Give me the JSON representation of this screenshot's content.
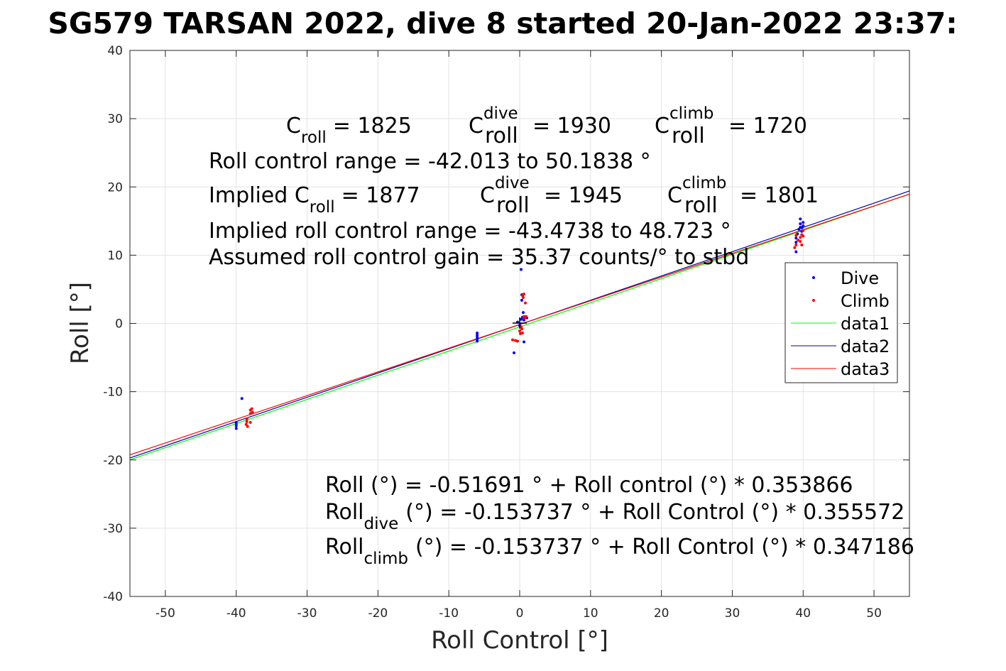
{
  "chart_data": {
    "type": "scatter",
    "title": "SG579 TARSAN 2022, dive 8 started 20-Jan-2022 23:37:",
    "xlabel": "Roll Control [°]",
    "ylabel": "Roll [°]",
    "xlim": [
      -55,
      55
    ],
    "ylim": [
      -40,
      40
    ],
    "xticks": [
      -50,
      -40,
      -30,
      -20,
      -10,
      0,
      10,
      20,
      30,
      40,
      50
    ],
    "yticks": [
      -40,
      -30,
      -20,
      -10,
      0,
      10,
      20,
      30,
      40
    ],
    "xtick_labels": [
      "-50",
      "-40",
      "-30",
      "-20",
      "-10",
      "0",
      "10",
      "20",
      "30",
      "40",
      "50"
    ],
    "ytick_labels": [
      "-40",
      "-30",
      "-20",
      "-10",
      "0",
      "10",
      "20",
      "30",
      "40"
    ],
    "grid": true,
    "legend_position": "right",
    "legend": [
      "Dive",
      "Climb",
      "data1",
      "data2",
      "data3"
    ],
    "colors": {
      "dive": "#0000ff",
      "climb": "#ff0000",
      "data1": "#00ff00",
      "data2": "#0000aa",
      "data3": "#ff0000"
    },
    "series": [
      {
        "name": "Dive",
        "kind": "points",
        "points": [
          [
            -40,
            -14.5
          ],
          [
            -40,
            -15.0
          ],
          [
            -40,
            -15.4
          ],
          [
            -40,
            -14.8
          ],
          [
            -39.2,
            -11.0
          ],
          [
            -6,
            -1.4
          ],
          [
            -6,
            -1.7
          ],
          [
            -6,
            -2.0
          ],
          [
            -6,
            -2.3
          ],
          [
            -6,
            -2.6
          ],
          [
            -0.8,
            -4.3
          ],
          [
            -0.3,
            0.2
          ],
          [
            0,
            -0.3
          ],
          [
            0.2,
            0.6
          ],
          [
            0.4,
            0.9
          ],
          [
            0.3,
            4.2
          ],
          [
            0.3,
            3.4
          ],
          [
            0.2,
            7.9
          ],
          [
            0.5,
            1.6
          ],
          [
            0.6,
            0.5
          ],
          [
            0.6,
            -2.7
          ],
          [
            0.9,
            1.0
          ],
          [
            1.0,
            0.8
          ],
          [
            39,
            10.5
          ],
          [
            39,
            11.9
          ],
          [
            39,
            12.5
          ],
          [
            39.2,
            13.1
          ],
          [
            39.4,
            13.8
          ],
          [
            39.6,
            14.6
          ],
          [
            39.6,
            15.3
          ],
          [
            39.8,
            14.0
          ],
          [
            39.8,
            13.5
          ],
          [
            40,
            14.3
          ],
          [
            40,
            14.8
          ],
          [
            39.6,
            14.1
          ]
        ]
      },
      {
        "name": "Climb",
        "kind": "points",
        "points": [
          [
            -38.5,
            -14.0
          ],
          [
            -38.5,
            -14.4
          ],
          [
            -38.6,
            -14.8
          ],
          [
            -38.4,
            -15.1
          ],
          [
            -38.0,
            -14.5
          ],
          [
            -38.0,
            -12.7
          ],
          [
            -37.8,
            -12.5
          ],
          [
            -38.0,
            -13.2
          ],
          [
            -37.7,
            -13.0
          ],
          [
            -1.0,
            -2.4
          ],
          [
            -0.6,
            -2.5
          ],
          [
            -0.3,
            -2.6
          ],
          [
            0,
            -1.1
          ],
          [
            0.1,
            -1.5
          ],
          [
            0.3,
            -0.8
          ],
          [
            0.4,
            4.1
          ],
          [
            0.5,
            3.8
          ],
          [
            0.6,
            4.3
          ],
          [
            0.8,
            3.0
          ],
          [
            0.6,
            1.0
          ],
          [
            0.7,
            0.8
          ],
          [
            0.9,
            1.0
          ],
          [
            0.4,
            -1.4
          ],
          [
            0.2,
            -0.5
          ],
          [
            38.8,
            11.1
          ],
          [
            39.0,
            11.5
          ],
          [
            39.0,
            12.9
          ],
          [
            39.3,
            12.2
          ],
          [
            39.6,
            12.6
          ],
          [
            39.6,
            12.0
          ],
          [
            39.8,
            13.0
          ],
          [
            39.8,
            11.5
          ],
          [
            40,
            13.6
          ],
          [
            40,
            12.8
          ]
        ]
      },
      {
        "name": "data1",
        "kind": "line",
        "intercept": -0.51691,
        "slope": 0.353866
      },
      {
        "name": "data2",
        "kind": "line",
        "intercept": -0.153737,
        "slope": 0.355572
      },
      {
        "name": "data3",
        "kind": "line",
        "intercept": -0.153737,
        "slope": 0.347186
      }
    ],
    "annotations": {
      "c_roll_label": "C",
      "c_roll_sub": "roll",
      "c_roll_val": "= 1825",
      "c_dive_sup": "dive",
      "c_dive_sub": "roll",
      "c_dive_val": "= 1930",
      "c_climb_sup": "climb",
      "c_climb_sub": "roll",
      "c_climb_val": "= 1720",
      "range": "Roll control range = -42.013 to 50.1838 °",
      "implied_label": "Implied C",
      "implied_sub": "roll",
      "implied_val": "= 1877",
      "implied_dive_val": "= 1945",
      "implied_climb_val": "= 1801",
      "implied_range": "Implied roll control range = -43.4738 to 48.723 °",
      "gain": "Assumed roll control gain = 35.37 counts/° to stbd",
      "fit1": "Roll (°) = -0.51691 ° + Roll control (°) * 0.353866",
      "fit2_pre": "Roll",
      "fit2_sub": "dive",
      "fit2_post": "(°) = -0.153737 ° + Roll Control (°) * 0.355572",
      "fit3_pre": "Roll",
      "fit3_sub": "climb",
      "fit3_post": "(°) = -0.153737 ° + Roll Control (°) * 0.347186"
    }
  }
}
